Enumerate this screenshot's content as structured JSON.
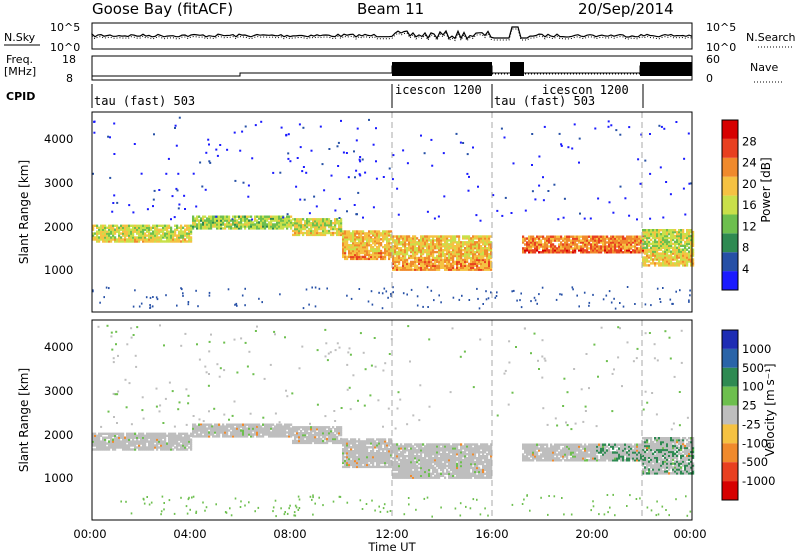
{
  "header": {
    "station": "Goose Bay (fitACF)",
    "beam": "Beam 11",
    "date": "20/Sep/2014"
  },
  "noise_panel": {
    "left_label": "N.Sky",
    "left_ticks": [
      "10^5",
      "10^0"
    ],
    "right_label": "N.Search",
    "right_ticks": [
      "10^5",
      "10^0"
    ]
  },
  "freq_panel": {
    "left_label_1": "Freq.",
    "left_label_2": "[MHz]",
    "left_ticks": [
      "18",
      "8"
    ],
    "right_label": "Nave",
    "right_ticks": [
      "60",
      "0"
    ]
  },
  "cpid_panel": {
    "label": "CPID",
    "segments": [
      "tau (fast) 503",
      "icescon 1200",
      "tau (fast) 503",
      "icescon 1200"
    ]
  },
  "power_panel": {
    "ylabel": "Slant Range [km]",
    "yticks": [
      "1000",
      "2000",
      "3000",
      "4000"
    ],
    "colorbar_label": "Power [dB]",
    "colorbar_ticks": [
      "4",
      "8",
      "12",
      "16",
      "20",
      "24",
      "28"
    ],
    "colors": [
      "#1a1aff",
      "#2650a6",
      "#2e8a52",
      "#6dbf4e",
      "#c9e04a",
      "#f5c242",
      "#f08a2c",
      "#e84020",
      "#d60000"
    ]
  },
  "velocity_panel": {
    "ylabel": "Slant Range [km]",
    "yticks": [
      "1000",
      "2000",
      "3000",
      "4000"
    ],
    "colorbar_label": "Velocity  [m s⁻¹]",
    "colorbar_ticks": [
      "1000",
      "500",
      "100",
      "25",
      "-25",
      "-100",
      "-500",
      "-1000"
    ],
    "colors": [
      "#1e2db4",
      "#2a64a8",
      "#2e8a52",
      "#6dbf4e",
      "#bebebe",
      "#f5c242",
      "#f08a2c",
      "#e84020",
      "#d60000"
    ]
  },
  "xaxis": {
    "ticks": [
      "00:00",
      "04:00",
      "08:00",
      "12:00",
      "16:00",
      "20:00",
      "00:00"
    ],
    "label": "Time UT"
  },
  "chart_data": {
    "type": "heatmap",
    "title": "Goose Bay (fitACF)",
    "x_unit": "hours UT",
    "xlim": [
      0,
      24
    ],
    "ylim": [
      0,
      4600
    ],
    "cpid_segments": [
      {
        "name": "tau (fast) 503",
        "start": 0,
        "end": 12
      },
      {
        "name": "icescon 1200",
        "start": 12,
        "end": 16
      },
      {
        "name": "tau (fast) 503",
        "start": 16,
        "end": 17.2
      },
      {
        "name": "icescon 1200",
        "start": 17.2,
        "end": 24
      }
    ],
    "power_ticks_db": [
      4,
      8,
      12,
      16,
      20,
      24,
      28
    ],
    "velocity_ticks": [
      1000,
      500,
      100,
      25,
      -25,
      -100,
      -500,
      -1000
    ],
    "bands": [
      {
        "t0": 0.0,
        "t1": 4.0,
        "r0": 1650,
        "r1": 2050,
        "power": 16
      },
      {
        "t0": 4.0,
        "t1": 8.0,
        "r0": 1950,
        "r1": 2250,
        "power": 14
      },
      {
        "t0": 8.0,
        "t1": 10.0,
        "r0": 1800,
        "r1": 2200,
        "power": 16
      },
      {
        "t0": 10.0,
        "t1": 12.0,
        "r0": 1250,
        "r1": 1900,
        "power": 20
      },
      {
        "t0": 12.0,
        "t1": 16.0,
        "r0": 1000,
        "r1": 1800,
        "power": 20
      },
      {
        "t0": 17.2,
        "t1": 22.0,
        "r0": 1400,
        "r1": 1800,
        "power": 24
      },
      {
        "t0": 22.0,
        "t1": 24.0,
        "r0": 1100,
        "r1": 1950,
        "power": 16
      }
    ]
  }
}
